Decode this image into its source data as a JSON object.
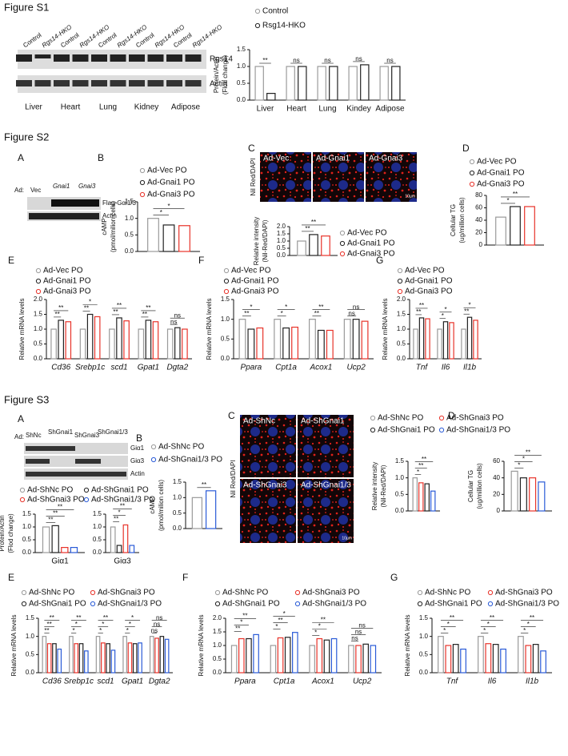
{
  "figure": {
    "s1": {
      "title": "Figure S1",
      "lanes": [
        "Control",
        "Rgs14-HKO",
        "Control",
        "Rgs14-HKO",
        "Control",
        "Rgs14-HKO",
        "Control",
        "Rgs14-HKO",
        "Control",
        "Rgs14-HKO"
      ],
      "bands": [
        "Rgs14",
        "Actin"
      ],
      "tissues": [
        "Liver",
        "Heart",
        "Lung",
        "Kidney",
        "Adipose"
      ]
    },
    "s2": {
      "title": "Figure S2",
      "panels": [
        "A",
        "B",
        "C",
        "D",
        "E",
        "F",
        "G"
      ],
      "blot_prefix": "Ad:",
      "lanes": [
        "Vec",
        "Gnai1",
        "Gnai3"
      ],
      "bands": [
        "Flag-Gαi1/3",
        "Actin"
      ],
      "images": [
        "Ad-Vec",
        "Ad-Gnai1",
        "Ad-Gnai3"
      ],
      "stain": "Nil Red/DAPI",
      "scale": "10µm"
    },
    "s3": {
      "title": "Figure S3",
      "panels": [
        "A",
        "B",
        "C",
        "D",
        "E",
        "F",
        "G"
      ],
      "blot_prefix": "Ad:",
      "lanes": [
        "ShNc",
        "ShGnai1",
        "ShGnai3",
        "ShGnai1/3"
      ],
      "bands": [
        "Giα1",
        "Giα3",
        "Actin"
      ],
      "images": [
        "Ad-ShNc",
        "Ad-ShGnai1",
        "Ad-ShGnai3",
        "Ad-ShGnai1/3"
      ],
      "stain": "Nil Red/DAPI",
      "scale": "10µm"
    }
  },
  "chart_data": [
    {
      "type": "bar",
      "ylabel": [
        "Protein/Actin",
        "(Flod change)"
      ],
      "categories": [
        "Liver",
        "Heart",
        "Lung",
        "Kindey",
        "Adipose"
      ],
      "series": [
        {
          "name": "Control",
          "color": "#9a9a9a",
          "values": [
            1.0,
            1.0,
            1.0,
            1.0,
            1.0
          ]
        },
        {
          "name": "Rsg14-HKO",
          "color": "#222222",
          "values": [
            0.2,
            1.0,
            1.0,
            1.05,
            1.0
          ]
        }
      ],
      "ylim": [
        0,
        1.5
      ],
      "yticks": [
        {
          "value": 0,
          "label": "0.0"
        },
        0.5,
        {
          "value": 1,
          "label": "1.0"
        },
        1.5
      ],
      "annotations": [
        [
          "**"
        ],
        [
          "ns"
        ],
        [
          "ns"
        ],
        [
          "ns"
        ],
        [
          "ns"
        ]
      ]
    },
    {
      "type": "bar",
      "ylabel": [
        "cAMP",
        "(pmol/milion cells)"
      ],
      "categories": [
        null
      ],
      "series": [
        {
          "name": "Ad-Vec PO",
          "color": "#9a9a9a",
          "values": [
            1.0
          ]
        },
        {
          "name": "Ad-Gnai1 PO",
          "color": "#222222",
          "values": [
            0.8
          ]
        },
        {
          "name": "Ad-Gnai3 PO",
          "color": "#e8332a",
          "values": [
            0.78
          ]
        }
      ],
      "ylim": [
        0,
        1.5
      ],
      "yticks": [
        {
          "value": 0,
          "label": "0.0"
        },
        0.5,
        {
          "value": 1,
          "label": "1.0"
        },
        1.5
      ],
      "annotations": [
        [
          "*",
          "*"
        ]
      ]
    },
    {
      "type": "bar",
      "ylabel": [
        "Relative intensity",
        "(Nil-Red/DAPI)"
      ],
      "categories": [
        null
      ],
      "series": [
        {
          "name": "Ad-Vec PO",
          "color": "#9a9a9a",
          "values": [
            1.0
          ]
        },
        {
          "name": "Ad-Gnai1 PO",
          "color": "#222222",
          "values": [
            1.45
          ]
        },
        {
          "name": "Ad-Gnai3 PO",
          "color": "#e8332a",
          "values": [
            1.35
          ]
        }
      ],
      "ylim": [
        0,
        2
      ],
      "yticks": [
        {
          "value": 0,
          "label": "0.0"
        },
        0.5,
        {
          "value": 1,
          "label": "1.0"
        },
        1.5,
        {
          "value": 2,
          "label": "2.0"
        }
      ],
      "annotations": [
        [
          "**",
          "**"
        ]
      ]
    },
    {
      "type": "bar",
      "ylabel": [
        "Cellular TG",
        "(ug/million cells)"
      ],
      "categories": [
        null
      ],
      "series": [
        {
          "name": "Ad-Vec PO",
          "color": "#9a9a9a",
          "values": [
            45
          ]
        },
        {
          "name": "Ad-Gnai1 PO",
          "color": "#222222",
          "values": [
            62
          ]
        },
        {
          "name": "Ad-Gnai3 PO",
          "color": "#e8332a",
          "values": [
            62
          ]
        }
      ],
      "ylim": [
        0,
        80
      ],
      "yticks": [
        0,
        20,
        40,
        60,
        80
      ],
      "annotations": [
        [
          "*",
          "**"
        ]
      ]
    },
    {
      "type": "bar",
      "ylabel": [
        "Relative mRNA levels"
      ],
      "categories": [
        "Cd36",
        "Srebp1c",
        "scd1",
        "Gpat1",
        "Dgta2"
      ],
      "series": [
        {
          "name": "Ad-Vec PO",
          "color": "#9a9a9a",
          "values": [
            1.0,
            1.0,
            1.0,
            1.0,
            1.0
          ]
        },
        {
          "name": "Ad-Gnai1 PO",
          "color": "#222222",
          "values": [
            1.3,
            1.5,
            1.38,
            1.3,
            1.05
          ]
        },
        {
          "name": "Ad-Gnai3 PO",
          "color": "#e8332a",
          "values": [
            1.25,
            1.42,
            1.28,
            1.25,
            1.0
          ]
        }
      ],
      "ylim": [
        0,
        2
      ],
      "yticks": [
        {
          "value": 0,
          "label": "0.0"
        },
        0.5,
        {
          "value": 1,
          "label": "1.0"
        },
        1.5,
        {
          "value": 2,
          "label": "2.0"
        }
      ],
      "annotations": [
        [
          "**",
          "**"
        ],
        [
          "**",
          "*"
        ],
        [
          "**",
          "**"
        ],
        [
          "**",
          "**"
        ],
        [
          "ns",
          "ns"
        ]
      ]
    },
    {
      "type": "bar",
      "ylabel": [
        "Relative mRNA levels"
      ],
      "categories": [
        "Ppara",
        "Cpt1a",
        "Acox1",
        "Ucp2"
      ],
      "series": [
        {
          "name": "Ad-Vec PO",
          "color": "#9a9a9a",
          "values": [
            1.0,
            1.0,
            1.0,
            1.0
          ]
        },
        {
          "name": "Ad-Gnai1 PO",
          "color": "#222222",
          "values": [
            0.75,
            0.78,
            0.72,
            1.0
          ]
        },
        {
          "name": "Ad-Gnai3 PO",
          "color": "#e8332a",
          "values": [
            0.78,
            0.8,
            0.72,
            0.95
          ]
        }
      ],
      "ylim": [
        0,
        1.5
      ],
      "yticks": [
        {
          "value": 0,
          "label": "0.0"
        },
        0.5,
        {
          "value": 1,
          "label": "1.0"
        },
        1.5
      ],
      "annotations": [
        [
          "**",
          "*"
        ],
        [
          "*",
          "*"
        ],
        [
          "**",
          "**"
        ],
        [
          "ns",
          "ns"
        ]
      ]
    },
    {
      "type": "bar",
      "ylabel": [
        "Relative mRNA levels"
      ],
      "categories": [
        "Tnf",
        "Il6",
        "Il1b"
      ],
      "series": [
        {
          "name": "Ad-Vec PO",
          "color": "#9a9a9a",
          "values": [
            1.0,
            1.0,
            1.0
          ]
        },
        {
          "name": "Ad-Gnai1 PO",
          "color": "#222222",
          "values": [
            1.38,
            1.25,
            1.4
          ]
        },
        {
          "name": "Ad-Gnai3 PO",
          "color": "#e8332a",
          "values": [
            1.35,
            1.22,
            1.3
          ]
        }
      ],
      "ylim": [
        0,
        2
      ],
      "yticks": [
        {
          "value": 0,
          "label": "0.0"
        },
        0.5,
        {
          "value": 1,
          "label": "1.0"
        },
        1.5,
        {
          "value": 2,
          "label": "2.0"
        }
      ],
      "annotations": [
        [
          "**",
          "**"
        ],
        [
          "*",
          "*"
        ],
        [
          "**",
          "*"
        ]
      ]
    },
    {
      "type": "bar",
      "ylabel": [
        "Protein/Actin",
        "(Flod change)"
      ],
      "categories": [
        "Giα1"
      ],
      "series": [
        {
          "name": "Ad-ShNc PO",
          "color": "#9a9a9a",
          "values": [
            1.0
          ]
        },
        {
          "name": "Ad-ShGnai1 PO",
          "color": "#222222",
          "values": [
            1.05
          ]
        },
        {
          "name": "Ad-ShGnai3 PO",
          "color": "#e8332a",
          "values": [
            0.2
          ]
        },
        {
          "name": "Ad-ShGnai1/3 PO",
          "color": "#2a5bd7",
          "values": [
            0.2
          ]
        }
      ],
      "ylim": [
        0,
        1.5
      ],
      "yticks": [
        {
          "value": 0,
          "label": "0.0"
        },
        0.5,
        {
          "value": 1,
          "label": "1.0"
        },
        1.5
      ],
      "annotations": [
        [
          "**",
          "**",
          "**"
        ]
      ]
    },
    {
      "type": "bar",
      "categories": [
        "Giα3"
      ],
      "series": [
        {
          "color": "#9a9a9a",
          "values": [
            1.0
          ]
        },
        {
          "color": "#222222",
          "values": [
            0.28
          ]
        },
        {
          "color": "#e8332a",
          "values": [
            1.08
          ]
        },
        {
          "color": "#2a5bd7",
          "values": [
            0.28
          ]
        }
      ],
      "ylim": [
        0,
        1.5
      ],
      "yticks": [
        {
          "value": 0,
          "label": "0.0"
        },
        0.5,
        {
          "value": 1,
          "label": "1.0"
        },
        1.5
      ],
      "annotations": [
        [
          "**",
          "*",
          "**"
        ]
      ]
    },
    {
      "type": "bar",
      "ylabel": [
        "cAMP",
        "(pmol/milion cells)"
      ],
      "categories": [
        null
      ],
      "series": [
        {
          "name": "Ad-ShNc PO",
          "color": "#9a9a9a",
          "values": [
            1.0
          ]
        },
        {
          "name": "Ad-ShGnai1/3 PO",
          "color": "#2a5bd7",
          "values": [
            1.22
          ]
        }
      ],
      "ylim": [
        0,
        1.5
      ],
      "yticks": [
        {
          "value": 0,
          "label": "0.0"
        },
        0.5,
        {
          "value": 1,
          "label": "1.0"
        },
        1.5
      ],
      "annotations": [
        [
          "**"
        ]
      ]
    },
    {
      "type": "bar",
      "ylabel": [
        "Relative intensity",
        "(Nil-Red/DAPI)"
      ],
      "categories": [
        null
      ],
      "series": [
        {
          "name": "Ad-ShNc PO",
          "color": "#9a9a9a",
          "values": [
            1.0
          ]
        },
        {
          "name": "Ad-ShGnai3 PO",
          "color": "#e8332a",
          "values": [
            0.85
          ]
        },
        {
          "name": "Ad-ShGnai1 PO",
          "color": "#222222",
          "values": [
            0.82
          ]
        },
        {
          "name": "Ad-ShGnai1/3 PO",
          "color": "#2a5bd7",
          "values": [
            0.6
          ]
        }
      ],
      "ylim": [
        0,
        1.5
      ],
      "yticks": [
        {
          "value": 0,
          "label": "0.0"
        },
        0.5,
        {
          "value": 1,
          "label": "1.0"
        },
        1.5
      ],
      "annotations": [
        [
          "*",
          "**",
          "**"
        ]
      ]
    },
    {
      "type": "bar",
      "ylabel": [
        "Cellular TG",
        "(ug/million cells)"
      ],
      "categories": [
        null
      ],
      "series": [
        {
          "color": "#9a9a9a",
          "values": [
            48
          ]
        },
        {
          "color": "#222222",
          "values": [
            40
          ]
        },
        {
          "color": "#e8332a",
          "values": [
            40
          ]
        },
        {
          "color": "#2a5bd7",
          "values": [
            35
          ]
        }
      ],
      "ylim": [
        0,
        60
      ],
      "yticks": [
        0,
        20,
        40,
        60
      ],
      "annotations": [
        [
          "*",
          "*",
          "**"
        ]
      ]
    },
    {
      "type": "bar",
      "ylabel": [
        "Relative mRNA levels"
      ],
      "categories": [
        "Cd36",
        "Srebp1c",
        "scd1",
        "Gpat1",
        "Dgta2"
      ],
      "series": [
        {
          "name": "Ad-ShNc PO",
          "color": "#9a9a9a",
          "values": [
            1.0,
            1.0,
            1.0,
            1.0,
            1.0
          ]
        },
        {
          "name": "Ad-ShGnai3 PO",
          "color": "#e8332a",
          "values": [
            0.8,
            0.8,
            0.82,
            0.82,
            0.95
          ]
        },
        {
          "name": "Ad-ShGnai1 PO",
          "color": "#222222",
          "values": [
            0.8,
            0.8,
            0.8,
            0.8,
            1.0
          ]
        },
        {
          "name": "Ad-ShGnai1/3 PO",
          "color": "#2a5bd7",
          "values": [
            0.65,
            0.6,
            0.62,
            0.82,
            0.92
          ]
        }
      ],
      "ylim": [
        0,
        1.5
      ],
      "yticks": [
        {
          "value": 0,
          "label": "0.0"
        },
        0.5,
        {
          "value": 1,
          "label": "1.0"
        },
        1.5
      ],
      "annotations": [
        [
          "**",
          "**",
          "**"
        ],
        [
          "*",
          "*",
          "**"
        ],
        [
          "*",
          "*",
          "**"
        ],
        [
          "*",
          "*",
          "*"
        ],
        [
          "ns",
          "ns",
          "ns"
        ]
      ]
    },
    {
      "type": "bar",
      "ylabel": [
        "Relative mRNA levels"
      ],
      "categories": [
        "Ppara",
        "Cpt1a",
        "Acox1",
        "Ucp2"
      ],
      "series": [
        {
          "name": "Ad-ShNc PO",
          "color": "#9a9a9a",
          "values": [
            1.0,
            1.0,
            1.0,
            1.0
          ]
        },
        {
          "name": "Ad-ShGnai3 PO",
          "color": "#e8332a",
          "values": [
            1.25,
            1.28,
            1.25,
            1.0
          ]
        },
        {
          "name": "Ad-ShGnai1 PO",
          "color": "#222222",
          "values": [
            1.25,
            1.3,
            1.2,
            1.05
          ]
        },
        {
          "name": "Ad-ShGnai1/3 PO",
          "color": "#2a5bd7",
          "values": [
            1.4,
            1.48,
            1.25,
            1.0
          ]
        }
      ],
      "ylim": [
        0,
        2
      ],
      "yticks": [
        {
          "value": 0,
          "label": "0.0"
        },
        0.5,
        {
          "value": 1,
          "label": "1.0"
        },
        1.5,
        {
          "value": 2,
          "label": "2.0"
        }
      ],
      "annotations": [
        [
          "**",
          "*",
          "**"
        ],
        [
          "*",
          "**",
          "*"
        ],
        [
          "*",
          "*",
          "**"
        ],
        [
          "ns",
          "ns",
          "ns"
        ]
      ]
    },
    {
      "type": "bar",
      "ylabel": [
        "Relative mRNA levels"
      ],
      "categories": [
        "Tnf",
        "Il6",
        "Il1b"
      ],
      "series": [
        {
          "name": "Ad-ShNc PO",
          "color": "#9a9a9a",
          "values": [
            1.0,
            1.0,
            1.0
          ]
        },
        {
          "name": "Ad-ShGnai3 PO",
          "color": "#e8332a",
          "values": [
            0.75,
            0.8,
            0.75
          ]
        },
        {
          "name": "Ad-ShGnai1 PO",
          "color": "#222222",
          "values": [
            0.78,
            0.78,
            0.78
          ]
        },
        {
          "name": "Ad-ShGnai1/3 PO",
          "color": "#2a5bd7",
          "values": [
            0.65,
            0.65,
            0.6
          ]
        }
      ],
      "ylim": [
        0,
        1.5
      ],
      "yticks": [
        {
          "value": 0,
          "label": "0.0"
        },
        0.5,
        {
          "value": 1,
          "label": "1.0"
        },
        1.5
      ],
      "annotations": [
        [
          "*",
          "*",
          "**"
        ],
        [
          "*",
          "*",
          "**"
        ],
        [
          "*",
          "*",
          "**"
        ]
      ]
    }
  ]
}
